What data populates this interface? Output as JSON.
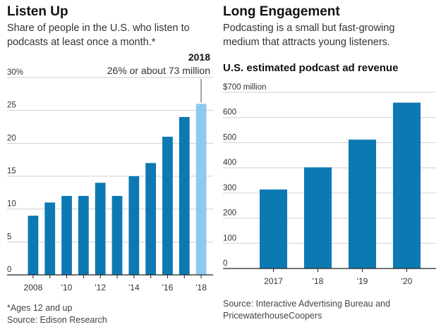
{
  "left": {
    "title": "Listen Up",
    "subtitle": "Share of people in the U.S. who listen to\npodcasts at least once a month.*",
    "annotation_year": "2018",
    "annotation_text": "26% or about 73 million",
    "footnote": "*Ages 12 and up",
    "source": "Source: Edison Research"
  },
  "right": {
    "title": "Long Engagement",
    "subtitle": "Podcasting is a small but fast-growing\nmedium that attracts young listeners.",
    "chart_title": "U.S. estimated podcast ad revenue",
    "source": "Source: Interactive Advertising Bureau and\nPricewaterhouseCoopers"
  },
  "colors": {
    "bar": "#0d79b3",
    "highlight": "#8ccbef",
    "gridline": "#cfcfcf",
    "axis": "#222222",
    "annotation_line": "#888888"
  },
  "chart_data": [
    {
      "type": "bar",
      "title": "Listen Up",
      "ylabel": "",
      "xlabel": "",
      "categories": [
        "2008",
        "2009",
        "2010",
        "2011",
        "2012",
        "2013",
        "2014",
        "2015",
        "2016",
        "2017",
        "2018"
      ],
      "x_tick_labels": [
        "2008",
        "",
        "'10",
        "",
        "'12",
        "",
        "'14",
        "",
        "'16",
        "",
        "'18"
      ],
      "y_tick_labels": [
        "0",
        "5",
        "10",
        "15",
        "20",
        "25",
        "30%"
      ],
      "y_ticks": [
        0,
        5,
        10,
        15,
        20,
        25,
        30
      ],
      "ylim": [
        0,
        30
      ],
      "values": [
        9,
        11,
        12,
        12,
        14,
        12,
        15,
        17,
        21,
        24,
        26
      ],
      "highlight_index": 10,
      "grid": true
    },
    {
      "type": "bar",
      "title": "U.S. estimated podcast ad revenue",
      "ylabel": "",
      "xlabel": "",
      "categories": [
        "2017",
        "'18",
        "'19",
        "'20"
      ],
      "y_tick_labels": [
        "0",
        "100",
        "200",
        "300",
        "400",
        "500",
        "600",
        "$700 million"
      ],
      "y_ticks": [
        0,
        100,
        200,
        300,
        400,
        500,
        600,
        700
      ],
      "ylim": [
        0,
        700
      ],
      "values": [
        314,
        402,
        512,
        659
      ],
      "grid": true
    }
  ]
}
